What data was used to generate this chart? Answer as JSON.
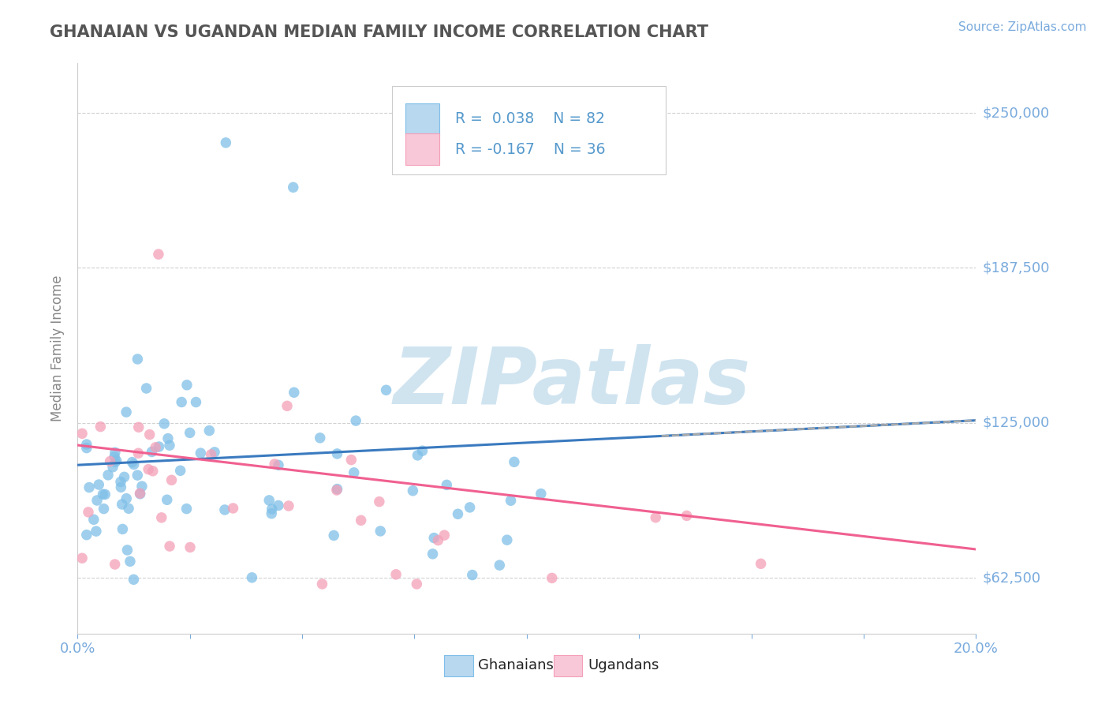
{
  "title": "GHANAIAN VS UGANDAN MEDIAN FAMILY INCOME CORRELATION CHART",
  "source": "Source: ZipAtlas.com",
  "ylabel": "Median Family Income",
  "xlim": [
    0.0,
    0.2
  ],
  "ylim": [
    40000,
    270000
  ],
  "yticks": [
    62500,
    125000,
    187500,
    250000
  ],
  "ytick_labels": [
    "$62,500",
    "$125,000",
    "$187,500",
    "$250,000"
  ],
  "ghanaian_color": "#7fbfe8",
  "ugandan_color": "#f4a0b8",
  "ghanaian_line_color": "#3a7abf",
  "ugandan_line_color": "#f06090",
  "watermark_text": "ZIPatlas",
  "watermark_color": "#d0e4f0",
  "background_color": "#ffffff",
  "grid_color": "#cccccc",
  "title_color": "#555555",
  "axis_color": "#7aabdd",
  "legend_label_color": "#5599cc",
  "source_color": "#7aabdd",
  "bottom_legend_text_color": "#222222",
  "gh_R": 0.038,
  "gh_N": 82,
  "ug_R": -0.167,
  "ug_N": 36,
  "gh_line_y0": 108000,
  "gh_line_y1": 126000,
  "ug_line_y0": 116000,
  "ug_line_y1": 74000
}
